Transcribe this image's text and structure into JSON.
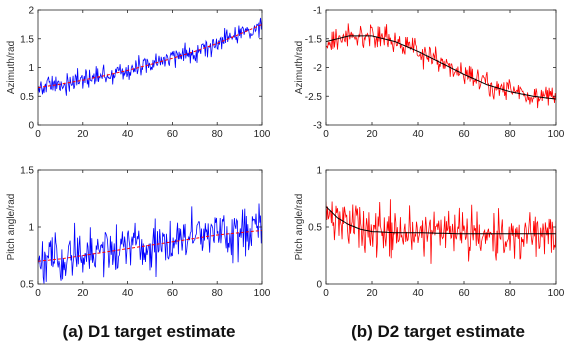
{
  "captions": [
    "(a) D1 target estimate",
    "(b) D2 target estimate"
  ],
  "chart_data": [
    {
      "type": "line",
      "panel": "top-left",
      "xlabel": "",
      "ylabel": "Azimuth/rad",
      "xlim": [
        0,
        100
      ],
      "ylim": [
        0,
        2
      ],
      "xticks": [
        0,
        20,
        40,
        60,
        80,
        100
      ],
      "yticks": [
        0,
        0.5,
        1,
        1.5,
        2
      ],
      "grid": false,
      "noise_color": "#0000ff",
      "trend_color": "#ff0000",
      "trend_style": "dashed",
      "trend": {
        "x": [
          0,
          10,
          20,
          30,
          40,
          50,
          60,
          70,
          80,
          90,
          100
        ],
        "y": [
          0.65,
          0.71,
          0.78,
          0.86,
          0.95,
          1.05,
          1.16,
          1.28,
          1.42,
          1.58,
          1.75
        ]
      },
      "noise_amplitude": 0.14
    },
    {
      "type": "line",
      "panel": "top-right",
      "xlabel": "",
      "ylabel": "Azimuth/rad",
      "xlim": [
        0,
        100
      ],
      "ylim": [
        -3,
        -1
      ],
      "xticks": [
        0,
        20,
        40,
        60,
        80,
        100
      ],
      "yticks": [
        -3,
        -2.5,
        -2,
        -1.5,
        -1
      ],
      "grid": false,
      "noise_color": "#ff0000",
      "trend_color": "#000000",
      "trend_style": "solid",
      "trend": {
        "x": [
          0,
          10,
          20,
          30,
          40,
          50,
          60,
          70,
          80,
          90,
          100
        ],
        "y": [
          -1.55,
          -1.45,
          -1.45,
          -1.55,
          -1.72,
          -1.92,
          -2.12,
          -2.3,
          -2.42,
          -2.5,
          -2.55
        ]
      },
      "noise_amplitude": 0.15
    },
    {
      "type": "line",
      "panel": "bottom-left",
      "xlabel": "",
      "ylabel": "Pitch angle/rad",
      "xlim": [
        0,
        100
      ],
      "ylim": [
        0.5,
        1.5
      ],
      "xticks": [
        0,
        20,
        40,
        60,
        80,
        100
      ],
      "yticks": [
        0.5,
        1,
        1.5
      ],
      "grid": false,
      "noise_color": "#0000ff",
      "trend_color": "#ff0000",
      "trend_style": "dashed",
      "trend": {
        "x": [
          0,
          10,
          20,
          30,
          40,
          50,
          60,
          70,
          80,
          90,
          100
        ],
        "y": [
          0.7,
          0.72,
          0.75,
          0.78,
          0.81,
          0.84,
          0.87,
          0.9,
          0.93,
          0.95,
          0.97
        ]
      },
      "noise_amplitude": 0.17
    },
    {
      "type": "line",
      "panel": "bottom-right",
      "xlabel": "",
      "ylabel": "Pitch angle/rad",
      "xlim": [
        0,
        100
      ],
      "ylim": [
        0,
        1
      ],
      "xticks": [
        0,
        20,
        40,
        60,
        80,
        100
      ],
      "yticks": [
        0,
        0.5,
        1
      ],
      "grid": false,
      "noise_color": "#ff0000",
      "trend_color": "#000000",
      "trend_style": "solid",
      "trend": {
        "x": [
          0,
          5,
          10,
          15,
          20,
          30,
          40,
          60,
          80,
          100
        ],
        "y": [
          0.68,
          0.58,
          0.52,
          0.48,
          0.46,
          0.45,
          0.45,
          0.44,
          0.44,
          0.44
        ]
      },
      "noise_amplitude": 0.17
    }
  ]
}
